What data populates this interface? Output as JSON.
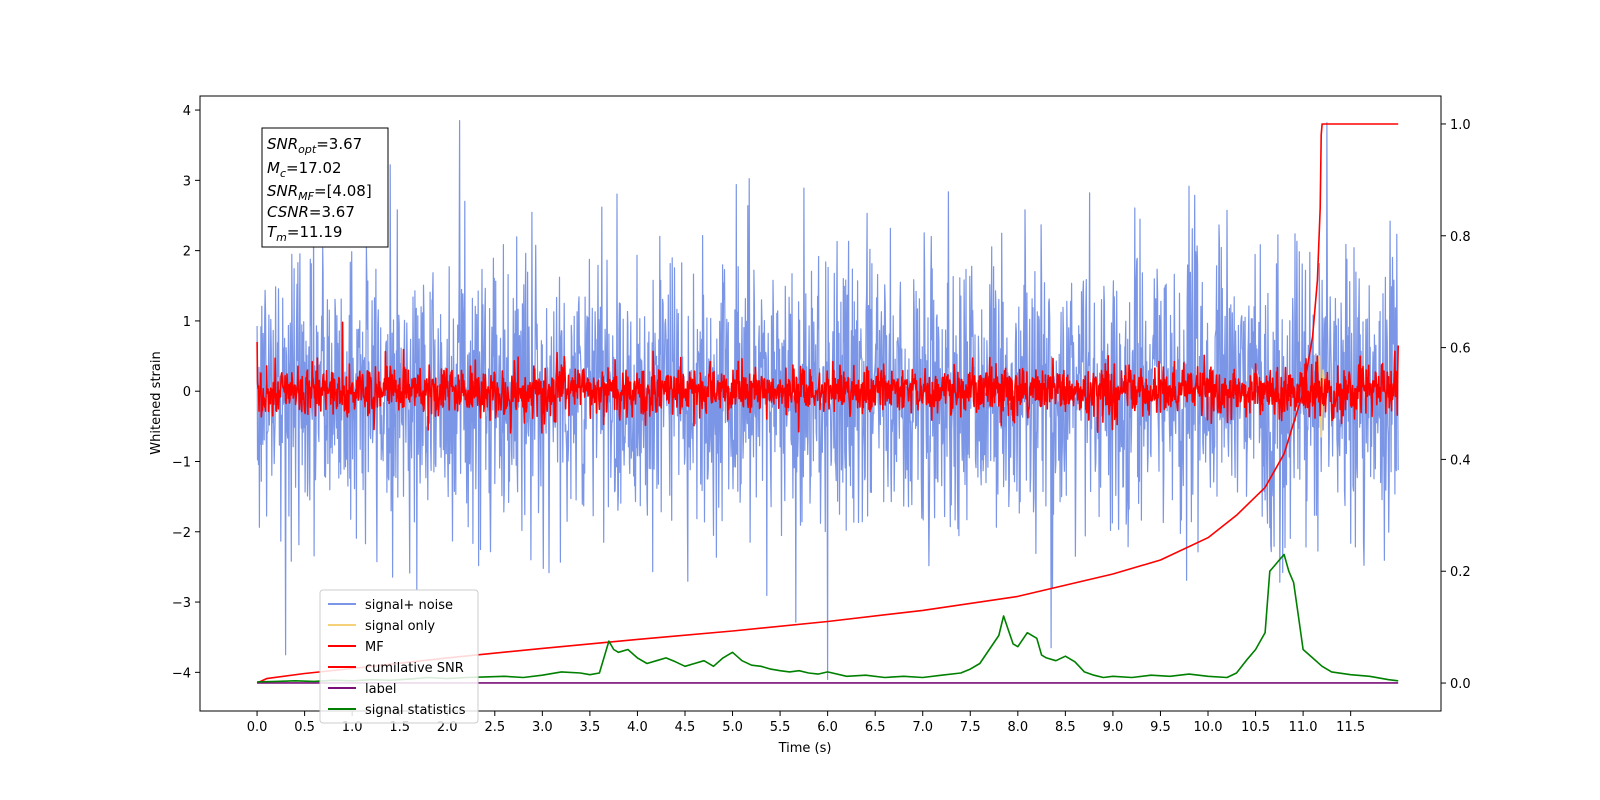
{
  "chart_data": {
    "type": "line",
    "xlabel": "Time (s)",
    "ylabel": "Whitened strain",
    "xlim": [
      -0.6,
      12.45
    ],
    "ylim_left": [
      -4.55,
      4.2
    ],
    "ylim_right": [
      -0.05,
      1.05
    ],
    "x_ticks": [
      "0.0",
      "0.5",
      "1.0",
      "1.5",
      "2.0",
      "2.5",
      "3.0",
      "3.5",
      "4.0",
      "4.5",
      "5.0",
      "5.5",
      "6.0",
      "6.5",
      "7.0",
      "7.5",
      "8.0",
      "8.5",
      "9.0",
      "9.5",
      "10.0",
      "10.5",
      "11.0",
      "11.5"
    ],
    "y_ticks_left": [
      "4",
      "3",
      "2",
      "1",
      "0",
      "−1",
      "−2",
      "−3",
      "−4"
    ],
    "y_ticks_right": [
      "1.0",
      "0.8",
      "0.6",
      "0.4",
      "0.2",
      "0.0"
    ],
    "stats_box": {
      "snr_opt": {
        "main": "SNR",
        "sub": "opt",
        "value": "=3.67"
      },
      "mc": {
        "main": "M",
        "sub": "c",
        "value": "=17.02"
      },
      "snr_mf": {
        "main": "SNR",
        "sub": "MF",
        "value": "=[4.08]"
      },
      "csnr": {
        "main": "CSNR",
        "sub": "",
        "value": "=3.67"
      },
      "tm": {
        "main": "T",
        "sub": "m",
        "value": "=11.19"
      }
    },
    "legend": {
      "placement": "lower-left",
      "entries": [
        {
          "label": "signal+ noise",
          "color": "#7b96e6"
        },
        {
          "label": "signal only",
          "color": "#f5d27a"
        },
        {
          "label": "MF",
          "color": "#ff0000"
        },
        {
          "label": "cumilative SNR",
          "color": "#ff0000"
        },
        {
          "label": "label",
          "color": "#7a0f7a"
        },
        {
          "label": "signal statistics",
          "color": "#008000"
        }
      ]
    },
    "series": [
      {
        "name": "signal+ noise",
        "axis": "left",
        "color": "#7b96e6",
        "x_range": [
          0,
          12
        ],
        "samples": 2400,
        "amplitude_std": 1.0,
        "notable_peaks": [
          [
            2.13,
            3.85
          ],
          [
            11.25,
            3.82
          ],
          [
            0.3,
            -3.75
          ],
          [
            6.0,
            -4.1
          ],
          [
            8.35,
            -3.65
          ]
        ]
      },
      {
        "name": "MF",
        "axis": "left",
        "color": "#ff0000",
        "x_range": [
          0,
          12
        ],
        "samples": 2400,
        "amplitude_std": 0.18,
        "notable_peaks": [
          [
            0.0,
            0.7
          ],
          [
            0.9,
            0.98
          ],
          [
            11.15,
            0.5
          ],
          [
            12.0,
            0.65
          ]
        ]
      },
      {
        "name": "signal only",
        "axis": "left",
        "color": "#f5d27a",
        "x": [
          11.1,
          11.15,
          11.17,
          11.19,
          11.21,
          11.23,
          11.3
        ],
        "y": [
          0.0,
          0.2,
          0.5,
          -0.65,
          0.3,
          0.0,
          0.0
        ]
      },
      {
        "name": "cumilative SNR",
        "axis": "right",
        "color": "#ff0000",
        "x": [
          0.0,
          0.1,
          0.5,
          1.0,
          2.0,
          3.0,
          4.0,
          5.0,
          6.0,
          7.0,
          8.0,
          9.0,
          9.5,
          10.0,
          10.3,
          10.6,
          10.8,
          11.0,
          11.1,
          11.15,
          11.18,
          11.19,
          11.2,
          12.0
        ],
        "y": [
          0.0,
          0.008,
          0.017,
          0.026,
          0.045,
          0.062,
          0.078,
          0.093,
          0.11,
          0.13,
          0.155,
          0.195,
          0.22,
          0.26,
          0.3,
          0.35,
          0.41,
          0.52,
          0.62,
          0.72,
          0.85,
          0.98,
          1.0,
          1.0
        ]
      },
      {
        "name": "label",
        "axis": "left",
        "color": "#7a0f7a",
        "x": [
          0.0,
          12.0
        ],
        "y": [
          -4.15,
          -4.15
        ]
      },
      {
        "name": "signal statistics",
        "axis": "right",
        "color": "#008000",
        "x": [
          0.0,
          0.2,
          0.4,
          0.6,
          0.8,
          1.0,
          1.2,
          1.4,
          1.6,
          1.8,
          2.0,
          2.2,
          2.4,
          2.6,
          2.8,
          3.0,
          3.2,
          3.4,
          3.5,
          3.6,
          3.7,
          3.75,
          3.8,
          3.9,
          4.0,
          4.1,
          4.2,
          4.3,
          4.4,
          4.5,
          4.6,
          4.7,
          4.8,
          4.9,
          5.0,
          5.1,
          5.2,
          5.3,
          5.4,
          5.5,
          5.6,
          5.7,
          5.8,
          5.9,
          6.0,
          6.2,
          6.4,
          6.6,
          6.8,
          7.0,
          7.2,
          7.4,
          7.5,
          7.6,
          7.7,
          7.8,
          7.85,
          7.9,
          7.95,
          8.0,
          8.1,
          8.2,
          8.25,
          8.3,
          8.4,
          8.5,
          8.6,
          8.7,
          8.8,
          8.9,
          9.0,
          9.2,
          9.4,
          9.6,
          9.8,
          10.0,
          10.2,
          10.3,
          10.4,
          10.5,
          10.55,
          10.6,
          10.65,
          10.7,
          10.75,
          10.8,
          10.85,
          10.9,
          10.95,
          11.0,
          11.1,
          11.2,
          11.3,
          11.5,
          11.7,
          11.9,
          12.0
        ],
        "y": [
          0.002,
          0.003,
          0.004,
          0.003,
          0.005,
          0.004,
          0.006,
          0.005,
          0.007,
          0.01,
          0.008,
          0.01,
          0.011,
          0.012,
          0.01,
          0.014,
          0.02,
          0.018,
          0.015,
          0.018,
          0.075,
          0.06,
          0.055,
          0.06,
          0.045,
          0.035,
          0.04,
          0.045,
          0.038,
          0.03,
          0.035,
          0.04,
          0.03,
          0.045,
          0.055,
          0.04,
          0.032,
          0.03,
          0.025,
          0.022,
          0.02,
          0.022,
          0.018,
          0.016,
          0.02,
          0.012,
          0.014,
          0.01,
          0.012,
          0.01,
          0.014,
          0.018,
          0.025,
          0.035,
          0.06,
          0.085,
          0.12,
          0.095,
          0.07,
          0.065,
          0.09,
          0.08,
          0.05,
          0.045,
          0.04,
          0.048,
          0.038,
          0.02,
          0.014,
          0.01,
          0.012,
          0.01,
          0.014,
          0.012,
          0.016,
          0.012,
          0.01,
          0.018,
          0.04,
          0.06,
          0.075,
          0.09,
          0.2,
          0.21,
          0.22,
          0.23,
          0.2,
          0.18,
          0.12,
          0.06,
          0.045,
          0.03,
          0.02,
          0.015,
          0.012,
          0.006,
          0.004
        ]
      }
    ]
  }
}
